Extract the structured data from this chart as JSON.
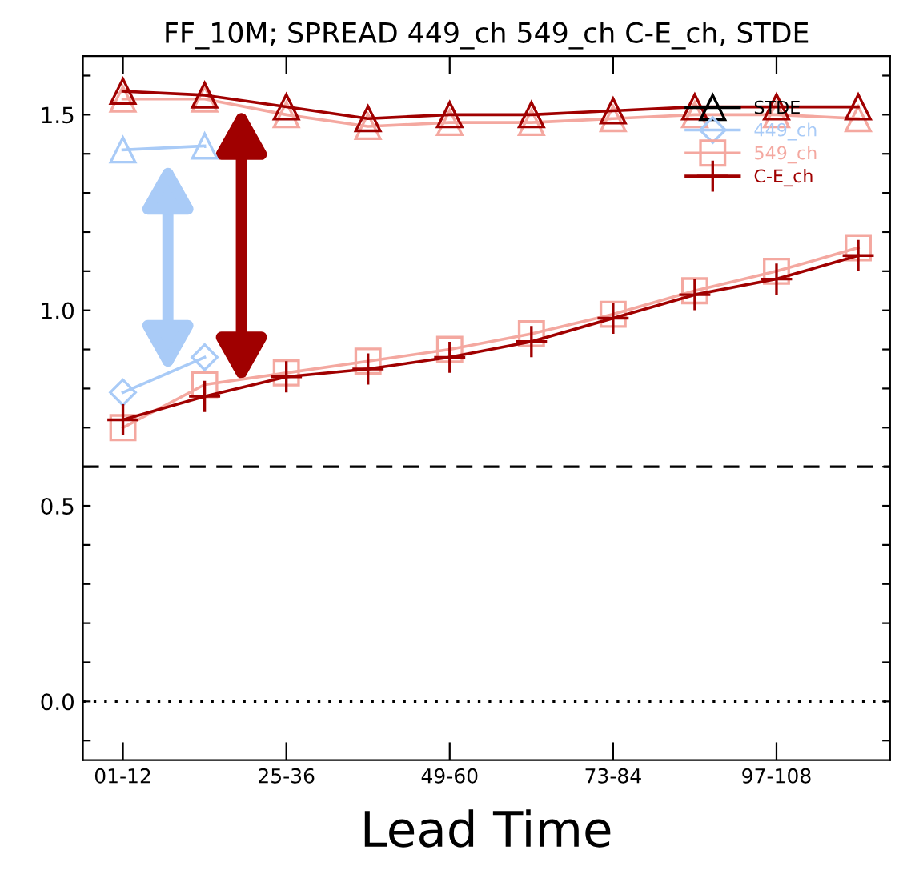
{
  "chart_data": {
    "type": "line",
    "title": "FF_10M; SPREAD 449_ch 549_ch C-E_ch, STDE",
    "xlabel": "Lead Time",
    "categories": [
      "01-12",
      null,
      "25-36",
      null,
      "49-60",
      null,
      "73-84",
      null,
      "97-108",
      null
    ],
    "ylim": [
      -0.15,
      1.65
    ],
    "yticks": [
      {
        "value": -0.1,
        "label": null
      },
      {
        "value": 0.0,
        "label": "0.0"
      },
      {
        "value": 0.1,
        "label": null
      },
      {
        "value": 0.2,
        "label": null
      },
      {
        "value": 0.3,
        "label": null
      },
      {
        "value": 0.4,
        "label": null
      },
      {
        "value": 0.5,
        "label": "0.5"
      },
      {
        "value": 0.6,
        "label": null
      },
      {
        "value": 0.7,
        "label": null
      },
      {
        "value": 0.8,
        "label": null
      },
      {
        "value": 0.9,
        "label": null
      },
      {
        "value": 1.0,
        "label": "1.0"
      },
      {
        "value": 1.1,
        "label": null
      },
      {
        "value": 1.2,
        "label": null
      },
      {
        "value": 1.3,
        "label": null
      },
      {
        "value": 1.4,
        "label": null
      },
      {
        "value": 1.5,
        "label": "1.5"
      },
      {
        "value": 1.6,
        "label": null
      }
    ],
    "grid": false,
    "legend": "top right",
    "ref_lines": [
      {
        "axis": "y",
        "value": 0.6,
        "line_style": "dashed",
        "color": "#000000"
      },
      {
        "axis": "y",
        "value": 0.0,
        "line_style": "dotted",
        "color": "#000000"
      }
    ],
    "series": [
      {
        "name": "STDE",
        "color": "#000000",
        "marker": "triangle",
        "values": [
          null,
          null,
          null,
          null,
          null,
          null,
          null,
          null,
          null,
          null
        ]
      },
      {
        "color": "#f4a8a0",
        "marker": "triangle",
        "values": [
          1.54,
          1.54,
          1.5,
          1.47,
          1.48,
          1.48,
          1.49,
          1.5,
          1.5,
          1.49
        ]
      },
      {
        "color": "#a9cbf7",
        "marker": "triangle",
        "values": [
          1.41,
          1.42,
          null,
          null,
          null,
          null,
          null,
          null,
          null,
          null
        ]
      },
      {
        "color": "#a00000",
        "marker": "triangle",
        "values": [
          1.56,
          1.55,
          1.52,
          1.49,
          1.5,
          1.5,
          1.51,
          1.52,
          1.52,
          1.52
        ]
      },
      {
        "name": "449_ch",
        "color": "#a9cbf7",
        "marker": "diamond",
        "values": [
          0.79,
          0.88,
          null,
          null,
          null,
          null,
          null,
          null,
          null,
          null
        ]
      },
      {
        "name": "549_ch",
        "color": "#f4a8a0",
        "marker": "square",
        "values": [
          0.7,
          0.81,
          0.84,
          0.87,
          0.9,
          0.94,
          0.99,
          1.05,
          1.1,
          1.16
        ]
      },
      {
        "name": "C-E_ch",
        "color": "#a00000",
        "marker": "cross",
        "values": [
          0.72,
          0.78,
          0.83,
          0.85,
          0.88,
          0.92,
          0.98,
          1.04,
          1.08,
          1.14
        ]
      }
    ]
  }
}
